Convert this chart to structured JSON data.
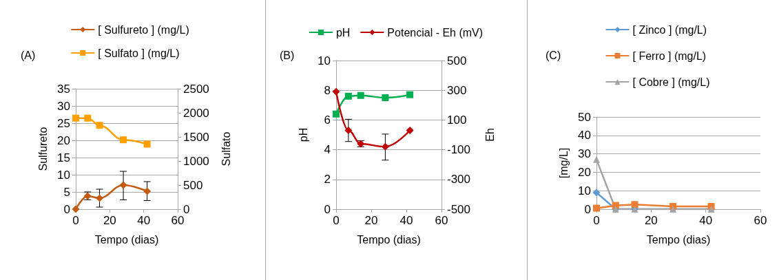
{
  "chart_data": [
    {
      "type": "line",
      "annotations": [
        "(A)"
      ],
      "xlabel": "Tempo (dias)",
      "ylabel": "Sulfureto",
      "y2label": "Sulfato",
      "x": [
        0,
        7,
        14,
        28,
        42
      ],
      "xlim": [
        0,
        60
      ],
      "xticks": [
        0,
        20,
        40,
        60
      ],
      "ylim": [
        0,
        35
      ],
      "yticks": [
        0,
        5,
        10,
        15,
        20,
        25,
        30,
        35
      ],
      "y2lim": [
        0,
        2500
      ],
      "y2ticks": [
        0,
        500,
        1000,
        1500,
        2000,
        2500
      ],
      "grid": "y",
      "legend": "top",
      "series": [
        {
          "name": "[ Sulfureto ] (mg/L)",
          "color": "#c55a11",
          "marker": "diamond",
          "values": [
            0,
            3.8,
            3.2,
            7,
            5.2
          ],
          "errors": [
            null,
            [
              2.7,
              5
            ],
            [
              0.6,
              5.8
            ],
            [
              2.7,
              11
            ],
            [
              2.5,
              8
            ]
          ]
        },
        {
          "name": "[ Sulfato ] (mg/L)",
          "color": "#ffa000",
          "marker": "square",
          "axis": "y2",
          "values": [
            1890,
            1890,
            1740,
            1440,
            1350
          ]
        }
      ]
    },
    {
      "type": "line",
      "annotations": [
        "(B)"
      ],
      "xlabel": "Tempo (dias)",
      "ylabel": "pH",
      "y2label": "Eh",
      "x": [
        0,
        7,
        14,
        28,
        42
      ],
      "xlim": [
        0,
        60
      ],
      "xticks": [
        0,
        20,
        40,
        60
      ],
      "ylim": [
        0,
        10
      ],
      "yticks": [
        0,
        2,
        4,
        6,
        8,
        10
      ],
      "y2lim": [
        -500,
        500
      ],
      "y2ticks": [
        -500,
        -300,
        -100,
        100,
        300,
        500
      ],
      "grid": "y",
      "legend": "top",
      "series": [
        {
          "name": "pH",
          "color": "#00b050",
          "marker": "square",
          "values": [
            6.4,
            7.6,
            7.65,
            7.5,
            7.7
          ]
        },
        {
          "name": "Potencial - Eh (mV)",
          "color": "#c00000",
          "marker": "diamond",
          "axis": "y2",
          "values": [
            290,
            30,
            -60,
            -80,
            30
          ],
          "errors": [
            null,
            [
              -45,
              105
            ],
            [
              -80,
              -40
            ],
            [
              -170,
              5
            ],
            null
          ]
        }
      ]
    },
    {
      "type": "line",
      "annotations": [
        "(C)"
      ],
      "xlabel": "Tempo (dias)",
      "ylabel": "[mg/L]",
      "x": [
        0,
        7,
        14,
        28,
        42
      ],
      "xlim": [
        0,
        60
      ],
      "xticks": [
        0,
        20,
        40,
        60
      ],
      "ylim": [
        0,
        50
      ],
      "yticks": [
        0,
        10,
        20,
        30,
        40,
        50
      ],
      "grid": "y",
      "legend": "top",
      "series": [
        {
          "name": "[ Zinco ] (mg/L)",
          "color": "#5b9bd5",
          "marker": "diamond",
          "values": [
            9,
            0,
            0,
            0,
            0
          ]
        },
        {
          "name": "[ Ferro ] (mg/L)",
          "color": "#ed7d31",
          "marker": "square",
          "values": [
            0.5,
            2,
            2.5,
            1.5,
            1.5
          ]
        },
        {
          "name": "[ Cobre ] (mg/L)",
          "color": "#a5a5a5",
          "marker": "triangle",
          "values": [
            27,
            0,
            0,
            0,
            0
          ]
        }
      ]
    }
  ]
}
